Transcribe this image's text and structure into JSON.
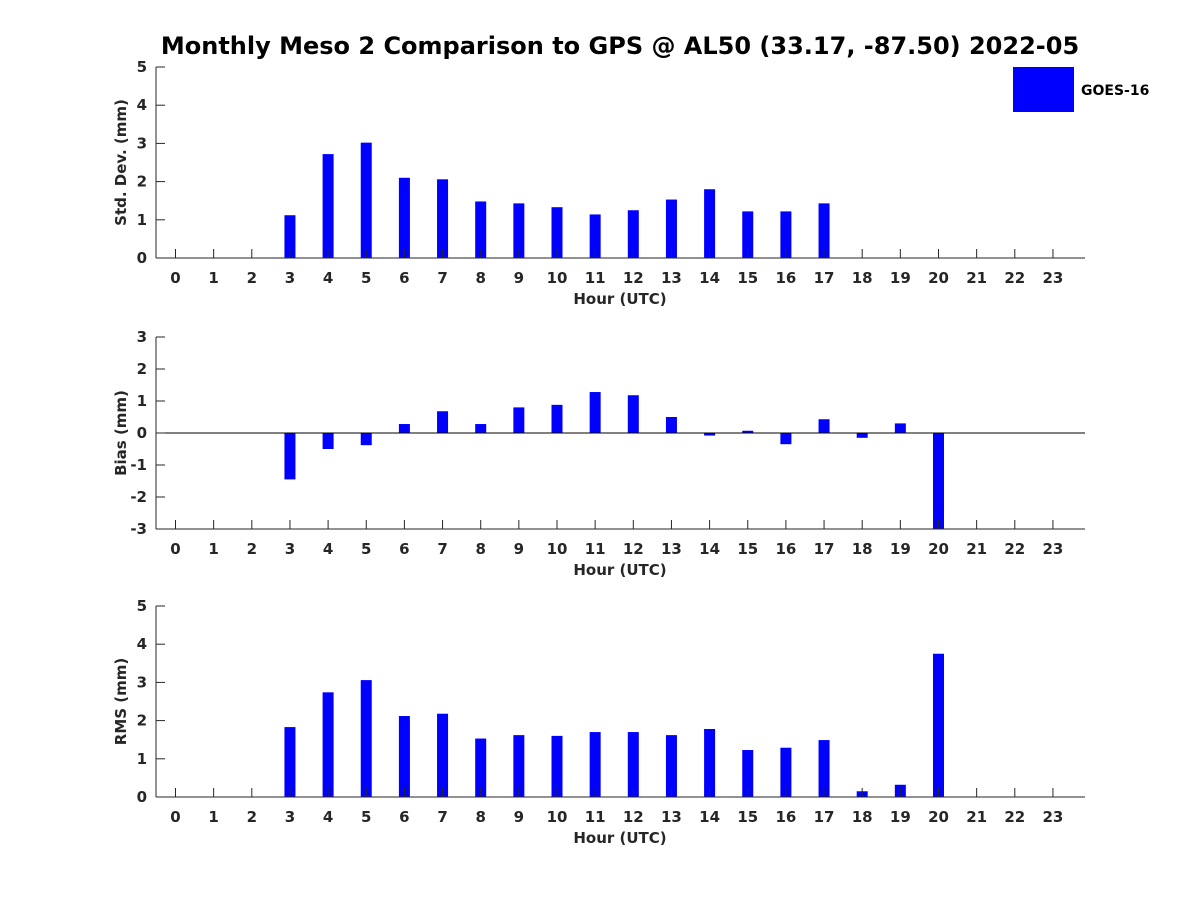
{
  "title": "Monthly Meso 2 Comparison to GPS @ AL50 (33.17, -87.50) 2022-05",
  "legend": {
    "label": "GOES-16",
    "color": "#0000ff",
    "placement": "top-right"
  },
  "colors": {
    "bar": "#0000ff",
    "axis": "#262626"
  },
  "chart_data": [
    {
      "type": "bar",
      "categories": [
        "0",
        "1",
        "2",
        "3",
        "4",
        "5",
        "6",
        "7",
        "8",
        "9",
        "10",
        "11",
        "12",
        "13",
        "14",
        "15",
        "16",
        "17",
        "18",
        "19",
        "20",
        "21",
        "22",
        "23"
      ],
      "xlabel": "Hour (UTC)",
      "ylabel": "Std. Dev. (mm)",
      "ylim": [
        0,
        5
      ],
      "yticks": [
        "0",
        "1",
        "2",
        "3",
        "4",
        "5"
      ],
      "series": [
        {
          "name": "GOES-16",
          "values": [
            null,
            null,
            null,
            1.12,
            2.72,
            3.02,
            2.1,
            2.06,
            1.48,
            1.43,
            1.33,
            1.14,
            1.25,
            1.53,
            1.8,
            1.22,
            1.22,
            1.43,
            null,
            null,
            null,
            null,
            null,
            null
          ]
        }
      ],
      "grid": false
    },
    {
      "type": "bar",
      "categories": [
        "0",
        "1",
        "2",
        "3",
        "4",
        "5",
        "6",
        "7",
        "8",
        "9",
        "10",
        "11",
        "12",
        "13",
        "14",
        "15",
        "16",
        "17",
        "18",
        "19",
        "20",
        "21",
        "22",
        "23"
      ],
      "xlabel": "Hour (UTC)",
      "ylabel": "Bias (mm)",
      "ylim": [
        -3,
        3
      ],
      "yticks": [
        "-3",
        "-2",
        "-1",
        "0",
        "1",
        "2",
        "3"
      ],
      "series": [
        {
          "name": "GOES-16",
          "values": [
            null,
            null,
            null,
            -1.45,
            -0.5,
            -0.38,
            0.28,
            0.68,
            0.28,
            0.8,
            0.88,
            1.28,
            1.18,
            0.5,
            -0.08,
            0.07,
            -0.35,
            0.43,
            -0.15,
            0.3,
            -3.0,
            null,
            null,
            null
          ]
        }
      ],
      "grid": false
    },
    {
      "type": "bar",
      "categories": [
        "0",
        "1",
        "2",
        "3",
        "4",
        "5",
        "6",
        "7",
        "8",
        "9",
        "10",
        "11",
        "12",
        "13",
        "14",
        "15",
        "16",
        "17",
        "18",
        "19",
        "20",
        "21",
        "22",
        "23"
      ],
      "xlabel": "Hour (UTC)",
      "ylabel": "RMS (mm)",
      "ylim": [
        0,
        5
      ],
      "yticks": [
        "0",
        "1",
        "2",
        "3",
        "4",
        "5"
      ],
      "series": [
        {
          "name": "GOES-16",
          "values": [
            null,
            null,
            null,
            1.83,
            2.74,
            3.06,
            2.12,
            2.18,
            1.53,
            1.62,
            1.6,
            1.7,
            1.7,
            1.62,
            1.78,
            1.23,
            1.29,
            1.49,
            0.15,
            0.32,
            3.75,
            null,
            null,
            null
          ]
        }
      ],
      "grid": false
    }
  ]
}
